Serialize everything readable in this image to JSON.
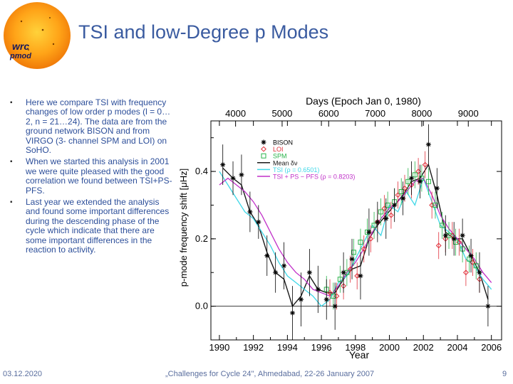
{
  "slide": {
    "title": "TSI and low-Degree p Modes",
    "logo_text_1": "wrc",
    "logo_text_2": "pmod",
    "bullets": [
      "Here we compare TSI with frequency changes of low order p modes (l = 0…2, n = 21…24). The data are from the ground network BISON and from VIRGO (3- channel SPM and LOI) on SoHO.",
      "When we started this analysis in 2001 we were quite pleased with the good correlation we found between TSI+PS-PFS.",
      "Last year we extended the analysis and found some important differences during the descending phase of the cycle which indicate that there are some important differences in the reaction to activity."
    ],
    "footer": {
      "date": "03.12.2020",
      "event": "„Challenges for Cycle 24\", Ahmedabad, 22-26 January 2007",
      "page": "9"
    }
  },
  "colors": {
    "title": "#3a5ba0",
    "text": "#2d4f9a",
    "bison": "#000000",
    "loi": "#e0303a",
    "spm": "#2ab34a",
    "mean": "#1a1a1a",
    "tsi": "#40d8e8",
    "tsi_ps": "#c030c8"
  },
  "chart_data": {
    "type": "line",
    "xlabel": "Year",
    "x2label": "Days (Epoch Jan 0, 1980)",
    "ylabel": "p-mode frequency shift [μHz]",
    "xlim": [
      1989.5,
      2006.6
    ],
    "ylim": [
      -0.1,
      0.55
    ],
    "x_ticks": [
      "1990",
      "1992",
      "1994",
      "1996",
      "1998",
      "2000",
      "2002",
      "2004",
      "2006"
    ],
    "x2_ticks": [
      "4000",
      "5000",
      "6000",
      "7000",
      "8000",
      "9000"
    ],
    "y_ticks": [
      "0.0",
      "0.2",
      "0.4"
    ],
    "legend": [
      "BISON",
      "LOI",
      "SPM",
      "Mean δν",
      "TSI (ρ = 0.6501)",
      "TSI + PS − PFS (ρ = 0.8203)"
    ],
    "series": [
      {
        "name": "BISON",
        "style": "markers-errorbars",
        "x": [
          1990.2,
          1990.8,
          1991.3,
          1991.8,
          1992.3,
          1992.8,
          1993.3,
          1993.8,
          1994.3,
          1994.8,
          1995.3,
          1995.8,
          1996.3,
          1996.8,
          1997.3,
          1997.8,
          1998.3,
          1998.8,
          1999.3,
          1999.8,
          2000.3,
          2000.8,
          2001.3,
          2001.8,
          2002.3,
          2002.8,
          2003.3,
          2003.8,
          2004.3,
          2004.8,
          2005.3,
          2005.8
        ],
        "y": [
          0.42,
          0.38,
          0.39,
          0.28,
          0.25,
          0.15,
          0.1,
          0.12,
          -0.02,
          0.02,
          0.1,
          0.05,
          0.02,
          0.0,
          0.1,
          0.14,
          0.09,
          0.22,
          0.25,
          0.26,
          0.3,
          0.32,
          0.38,
          0.37,
          0.48,
          0.35,
          0.21,
          0.2,
          0.21,
          0.15,
          0.1,
          0.0
        ],
        "err": [
          0.06,
          0.05,
          0.06,
          0.06,
          0.05,
          0.06,
          0.06,
          0.07,
          0.08,
          0.08,
          0.07,
          0.07,
          0.06,
          0.07,
          0.06,
          0.06,
          0.07,
          0.07,
          0.06,
          0.06,
          0.05,
          0.05,
          0.05,
          0.05,
          0.06,
          0.06,
          0.06,
          0.05,
          0.05,
          0.05,
          0.06,
          0.06
        ]
      },
      {
        "name": "LOI",
        "style": "markers-errorbars",
        "x": [
          1996.5,
          1996.9,
          1997.3,
          1997.7,
          1998.1,
          1998.5,
          1998.9,
          1999.3,
          1999.7,
          2000.1,
          2000.5,
          2000.9,
          2001.3,
          2001.7,
          2002.1,
          2002.5,
          2002.9,
          2003.3,
          2003.7,
          2004.1,
          2004.5,
          2004.9,
          2005.3
        ],
        "y": [
          0.04,
          0.03,
          0.06,
          0.11,
          0.09,
          0.17,
          0.2,
          0.25,
          0.29,
          0.27,
          0.33,
          0.35,
          0.36,
          0.4,
          0.42,
          0.3,
          0.18,
          0.2,
          0.21,
          0.19,
          0.1,
          0.13,
          0.08
        ],
        "err": [
          0.04,
          0.04,
          0.04,
          0.04,
          0.04,
          0.04,
          0.04,
          0.04,
          0.04,
          0.04,
          0.04,
          0.04,
          0.04,
          0.04,
          0.04,
          0.04,
          0.04,
          0.04,
          0.04,
          0.04,
          0.04,
          0.04,
          0.04
        ]
      },
      {
        "name": "SPM",
        "style": "markers-errorbars",
        "x": [
          1996.3,
          1996.7,
          1997.1,
          1997.5,
          1997.9,
          1998.3,
          1998.7,
          1999.1,
          1999.5,
          1999.9,
          2000.3,
          2000.7,
          2001.1,
          2001.5,
          2001.9,
          2002.3,
          2002.7,
          2003.1,
          2003.5,
          2003.9,
          2004.3,
          2004.7,
          2005.1
        ],
        "y": [
          0.05,
          0.03,
          0.08,
          0.1,
          0.16,
          0.19,
          0.22,
          0.24,
          0.28,
          0.3,
          0.31,
          0.34,
          0.37,
          0.39,
          0.38,
          0.37,
          0.3,
          0.24,
          0.21,
          0.19,
          0.17,
          0.14,
          0.12
        ],
        "err": [
          0.04,
          0.04,
          0.04,
          0.04,
          0.04,
          0.04,
          0.04,
          0.04,
          0.04,
          0.04,
          0.04,
          0.04,
          0.04,
          0.04,
          0.04,
          0.04,
          0.04,
          0.04,
          0.04,
          0.04,
          0.04,
          0.04,
          0.04
        ]
      },
      {
        "name": "Mean δν",
        "style": "line",
        "x": [
          1990.2,
          1990.8,
          1991.3,
          1991.8,
          1992.3,
          1992.8,
          1993.3,
          1993.8,
          1994.3,
          1994.8,
          1995.3,
          1995.8,
          1996.3,
          1996.8,
          1997.3,
          1997.8,
          1998.3,
          1998.8,
          1999.3,
          1999.8,
          2000.3,
          2000.8,
          2001.3,
          2001.8,
          2002.3,
          2002.8,
          2003.3,
          2003.8,
          2004.3,
          2004.8,
          2005.3,
          2005.8
        ],
        "y": [
          0.41,
          0.38,
          0.36,
          0.28,
          0.24,
          0.16,
          0.1,
          0.08,
          0.0,
          0.03,
          0.09,
          0.05,
          0.04,
          0.04,
          0.08,
          0.11,
          0.12,
          0.2,
          0.24,
          0.27,
          0.3,
          0.33,
          0.37,
          0.38,
          0.42,
          0.33,
          0.22,
          0.2,
          0.2,
          0.15,
          0.1,
          0.02
        ]
      },
      {
        "name": "TSI (ρ = 0.6501)",
        "style": "line",
        "x": [
          1990.0,
          1990.5,
          1991.0,
          1991.5,
          1992.0,
          1992.5,
          1993.0,
          1993.5,
          1994.0,
          1994.5,
          1995.0,
          1995.5,
          1996.0,
          1996.5,
          1997.0,
          1997.5,
          1998.0,
          1998.5,
          1999.0,
          1999.5,
          2000.0,
          2000.5,
          2001.0,
          2001.5,
          2002.0,
          2002.5,
          2003.0,
          2003.5,
          2004.0,
          2004.5,
          2005.0,
          2005.5,
          2006.0
        ],
        "y": [
          0.4,
          0.36,
          0.32,
          0.28,
          0.26,
          0.22,
          0.18,
          0.13,
          0.09,
          0.07,
          0.05,
          0.03,
          0.0,
          0.02,
          0.07,
          0.09,
          0.14,
          0.19,
          0.24,
          0.21,
          0.3,
          0.28,
          0.34,
          0.3,
          0.38,
          0.31,
          0.24,
          0.22,
          0.2,
          0.14,
          0.12,
          0.08,
          0.05
        ]
      },
      {
        "name": "TSI + PS − PFS (ρ = 0.8203)",
        "style": "line",
        "x": [
          1990.0,
          1990.5,
          1991.0,
          1991.5,
          1992.0,
          1992.5,
          1993.0,
          1993.5,
          1994.0,
          1994.5,
          1995.0,
          1995.5,
          1996.0,
          1996.5,
          1997.0,
          1997.5,
          1998.0,
          1998.5,
          1999.0,
          1999.5,
          2000.0,
          2000.5,
          2001.0,
          2001.5,
          2002.0,
          2002.5,
          2003.0,
          2003.5,
          2004.0,
          2004.5,
          2005.0,
          2005.5,
          2006.0
        ],
        "y": [
          0.36,
          0.38,
          0.36,
          0.34,
          0.31,
          0.27,
          0.22,
          0.17,
          0.13,
          0.1,
          0.08,
          0.05,
          0.04,
          0.03,
          0.06,
          0.1,
          0.13,
          0.17,
          0.22,
          0.26,
          0.29,
          0.31,
          0.34,
          0.37,
          0.38,
          0.33,
          0.27,
          0.23,
          0.2,
          0.17,
          0.14,
          0.1,
          0.07
        ]
      }
    ]
  }
}
